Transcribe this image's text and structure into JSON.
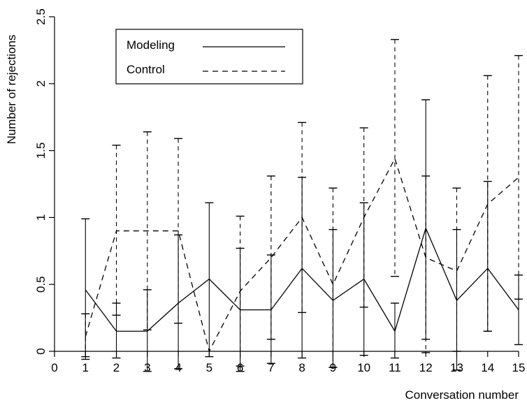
{
  "chart_data": {
    "type": "line",
    "title": "",
    "xlabel": "Conversation number",
    "ylabel": "Number of rejections",
    "x": [
      1,
      2,
      3,
      4,
      5,
      6,
      7,
      8,
      9,
      10,
      11,
      12,
      13,
      14,
      15
    ],
    "xlim": [
      0,
      15
    ],
    "ylim": [
      0,
      2.5
    ],
    "x_ticks": [
      "0",
      "1",
      "2",
      "3",
      "4",
      "5",
      "6",
      "7",
      "8",
      "9",
      "10",
      "11",
      "12",
      "13",
      "14",
      "15"
    ],
    "y_ticks": [
      "0",
      "0.5",
      "1",
      "1.5",
      "2",
      "2.5"
    ],
    "grid": false,
    "legend_position": "top-left",
    "series": [
      {
        "name": "Modeling",
        "style": "solid",
        "values": [
          0.46,
          0.15,
          0.15,
          0.36,
          0.54,
          0.31,
          0.31,
          0.62,
          0.38,
          0.54,
          0.15,
          0.92,
          0.38,
          0.62,
          0.31
        ],
        "err_low": [
          -0.06,
          -0.05,
          -0.15,
          -0.13,
          -0.04,
          -0.15,
          -0.09,
          -0.05,
          -0.12,
          -0.03,
          -0.05,
          0.09,
          -0.14,
          0.15,
          0.05
        ],
        "err_high": [
          0.99,
          0.36,
          0.46,
          0.87,
          1.11,
          0.77,
          0.72,
          1.3,
          0.91,
          1.11,
          0.36,
          1.88,
          0.91,
          1.27,
          0.57
        ]
      },
      {
        "name": "Control",
        "style": "dashed",
        "values": [
          0.11,
          0.9,
          0.9,
          0.9,
          0.0,
          0.45,
          0.7,
          1.0,
          0.5,
          1.0,
          1.44,
          0.7,
          0.6,
          1.1,
          1.3
        ],
        "err_low": [
          -0.04,
          0.27,
          0.16,
          0.21,
          0.0,
          -0.11,
          0.09,
          0.29,
          -0.12,
          0.33,
          0.56,
          -0.01,
          0.0,
          0.15,
          0.39
        ],
        "err_high": [
          0.28,
          1.54,
          1.64,
          1.59,
          0.0,
          1.01,
          1.31,
          1.71,
          1.22,
          1.67,
          2.33,
          1.31,
          1.22,
          2.06,
          2.21
        ]
      }
    ]
  }
}
